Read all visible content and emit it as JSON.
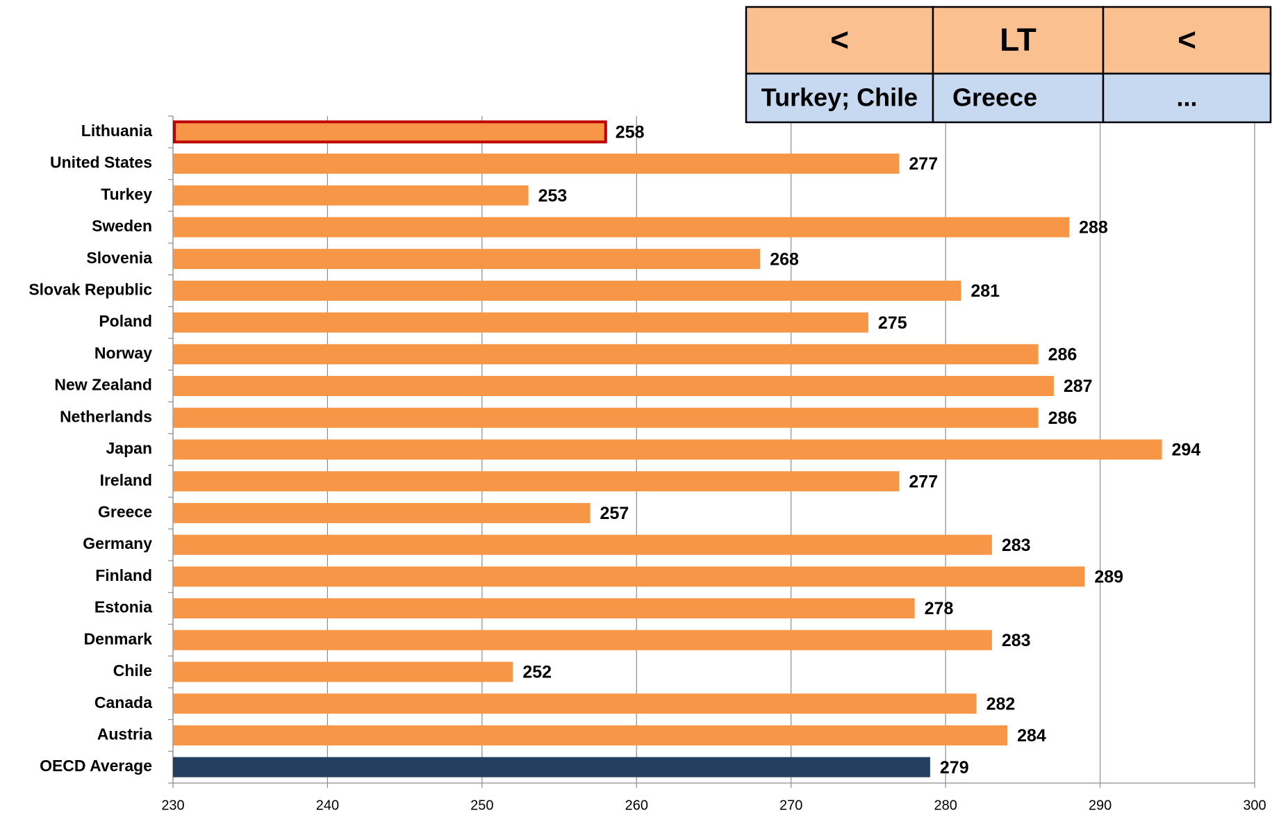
{
  "chart_data": {
    "type": "barh",
    "categories": [
      "Lithuania",
      "United States",
      "Turkey",
      "Sweden",
      "Slovenia",
      "Slovak Republic",
      "Poland",
      "Norway",
      "New Zealand",
      "Netherlands",
      "Japan",
      "Ireland",
      "Greece",
      "Germany",
      "Finland",
      "Estonia",
      "Denmark",
      "Chile",
      "Canada",
      "Austria",
      "OECD Average"
    ],
    "values": [
      258,
      277,
      253,
      288,
      268,
      281,
      275,
      286,
      287,
      286,
      294,
      277,
      257,
      283,
      289,
      278,
      283,
      252,
      282,
      284,
      279
    ],
    "colors": [
      "#f79646",
      "#f79646",
      "#f79646",
      "#f79646",
      "#f79646",
      "#f79646",
      "#f79646",
      "#f79646",
      "#f79646",
      "#f79646",
      "#f79646",
      "#f79646",
      "#f79646",
      "#f79646",
      "#f79646",
      "#f79646",
      "#f79646",
      "#f79646",
      "#f79646",
      "#f79646",
      "#243f60"
    ],
    "edgecolors": [
      "#c00000",
      "none",
      "none",
      "none",
      "none",
      "none",
      "none",
      "none",
      "none",
      "none",
      "none",
      "none",
      "none",
      "none",
      "none",
      "none",
      "none",
      "none",
      "none",
      "none",
      "none"
    ],
    "xlim": [
      230,
      300
    ],
    "xticks": [
      230,
      240,
      250,
      260,
      270,
      280,
      290,
      300
    ],
    "grid": true
  },
  "table": {
    "header": [
      "<",
      "LT",
      "<"
    ],
    "rows": [
      [
        "Turkey; Chile",
        "Greece",
        "..."
      ]
    ]
  }
}
